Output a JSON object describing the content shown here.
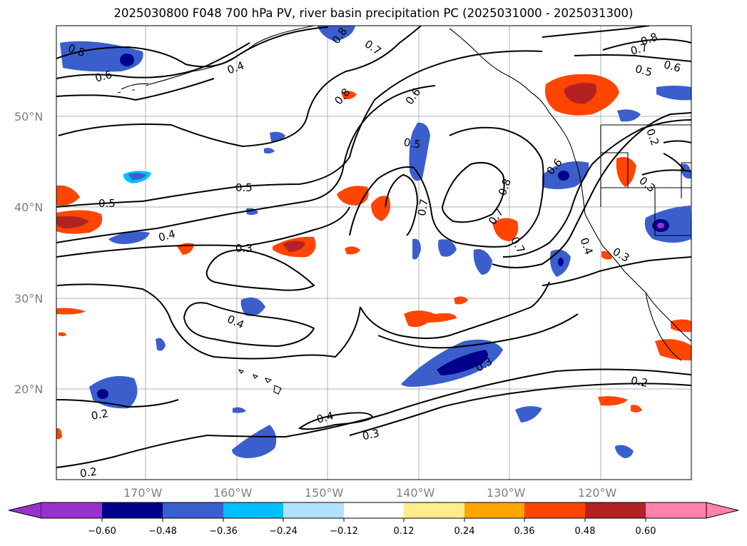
{
  "title": "2025030800 F048 700 hPa PV, river basin precipitation PC (2025031000 - 2025031300)",
  "map": {
    "lon_labels": [
      "170°W",
      "160°W",
      "150°W",
      "140°W",
      "130°W",
      "120°W"
    ],
    "lat_labels": [
      "50°N",
      "40°N",
      "30°N",
      "20°N"
    ],
    "grid_color": "#b0b0b0",
    "coastline_color": "#000000"
  },
  "contour_labels": [
    "0.8",
    "0.7",
    "0.6",
    "0.5",
    "0.4",
    "0.3",
    "0.2"
  ],
  "colorbar": {
    "colors": [
      "#9932cc",
      "#00008b",
      "#3a5fcd",
      "#00bfff",
      "#b0e2ff",
      "#ffffff",
      "#ffec8b",
      "#ffa500",
      "#ff4500",
      "#b22222",
      "#ff82ab"
    ],
    "tick_labels": [
      "−0.60",
      "−0.48",
      "−0.36",
      "−0.24",
      "−0.12",
      "0.12",
      "0.24",
      "0.36",
      "0.48",
      "0.60"
    ]
  }
}
